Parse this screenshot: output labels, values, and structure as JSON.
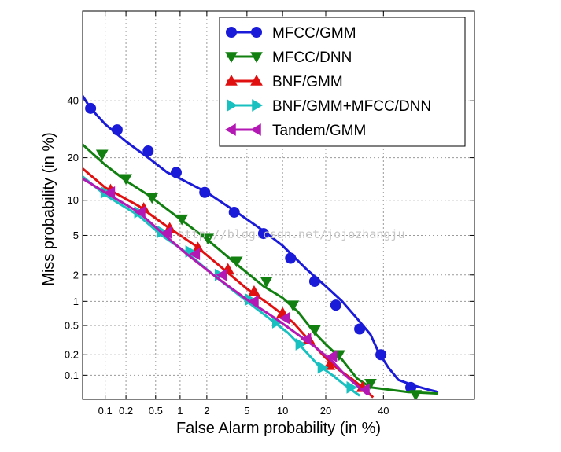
{
  "chart_data": {
    "type": "line",
    "title": "",
    "xlabel": "False Alarm probability (in %)",
    "ylabel": "Miss probability (in %)",
    "scale": "normal-deviate (DET)",
    "xlim_percent": [
      0.045,
      75
    ],
    "ylim_percent": [
      0.042,
      75
    ],
    "grid": true,
    "legend_position": "top-right",
    "x_ticks": [
      "0.1",
      "0.2",
      "0.5",
      "1",
      "2",
      "5",
      "10",
      "20",
      "40"
    ],
    "y_ticks": [
      "0.1",
      "0.2",
      "0.5",
      "1",
      "2",
      "5",
      "10",
      "20",
      "40"
    ],
    "watermark": "http://blog.csdn.net/jojozhangju",
    "series": [
      {
        "name": "MFCC/GMM",
        "color": "#1a1ad9",
        "marker": "circle",
        "points": [
          [
            0.045,
            42
          ],
          [
            0.06,
            37
          ],
          [
            0.1,
            31
          ],
          [
            0.2,
            25
          ],
          [
            0.4,
            20
          ],
          [
            0.7,
            16
          ],
          [
            1,
            14.5
          ],
          [
            2,
            11.5
          ],
          [
            4,
            8
          ],
          [
            7,
            5.5
          ],
          [
            10,
            4
          ],
          [
            15,
            2.3
          ],
          [
            20,
            1.5
          ],
          [
            25,
            1.0
          ],
          [
            30,
            0.62
          ],
          [
            35,
            0.38
          ],
          [
            38,
            0.22
          ],
          [
            42,
            0.13
          ],
          [
            46,
            0.085
          ],
          [
            52,
            0.07
          ],
          [
            58,
            0.06
          ],
          [
            62,
            0.055
          ]
        ],
        "marker_points": [
          [
            0.06,
            37
          ],
          [
            0.15,
            29
          ],
          [
            0.4,
            22
          ],
          [
            0.9,
            16
          ],
          [
            1.9,
            11.5
          ],
          [
            3.8,
            8
          ],
          [
            7,
            5.2
          ],
          [
            11.5,
            3.0
          ],
          [
            17,
            1.7
          ],
          [
            23,
            0.9
          ],
          [
            31,
            0.45
          ],
          [
            39,
            0.2
          ],
          [
            51,
            0.065
          ]
        ]
      },
      {
        "name": "MFCC/DNN",
        "color": "#118011",
        "marker": "triangle-down",
        "points": [
          [
            0.045,
            24
          ],
          [
            0.1,
            18
          ],
          [
            0.2,
            14
          ],
          [
            0.4,
            11
          ],
          [
            1,
            7
          ],
          [
            2,
            4.6
          ],
          [
            4,
            2.6
          ],
          [
            7,
            1.5
          ],
          [
            10,
            1.1
          ],
          [
            13,
            0.75
          ],
          [
            17,
            0.4
          ],
          [
            20,
            0.28
          ],
          [
            25,
            0.17
          ],
          [
            30,
            0.09
          ],
          [
            35,
            0.065
          ],
          [
            50,
            0.055
          ],
          [
            62,
            0.052
          ]
        ],
        "marker_points": [
          [
            0.09,
            21
          ],
          [
            0.2,
            14.5
          ],
          [
            0.45,
            10.5
          ],
          [
            1.05,
            7.0
          ],
          [
            2.05,
            4.7
          ],
          [
            4.0,
            2.8
          ],
          [
            7.4,
            1.7
          ],
          [
            12,
            0.9
          ],
          [
            17,
            0.44
          ],
          [
            24,
            0.2
          ],
          [
            35,
            0.075
          ],
          [
            53,
            0.05
          ]
        ]
      },
      {
        "name": "BNF/GMM",
        "color": "#e01010",
        "marker": "triangle-up",
        "points": [
          [
            0.045,
            17
          ],
          [
            0.1,
            12.5
          ],
          [
            0.3,
            9
          ],
          [
            0.7,
            6
          ],
          [
            1.5,
            4
          ],
          [
            3,
            2.3
          ],
          [
            5,
            1.4
          ],
          [
            8,
            0.9
          ],
          [
            12,
            0.55
          ],
          [
            16,
            0.3
          ],
          [
            20,
            0.18
          ],
          [
            24,
            0.12
          ],
          [
            28,
            0.09
          ],
          [
            33,
            0.06
          ],
          [
            36,
            0.045
          ]
        ],
        "marker_points": [
          [
            0.12,
            12
          ],
          [
            0.35,
            8.6
          ],
          [
            0.75,
            5.8
          ],
          [
            1.6,
            3.8
          ],
          [
            3.3,
            2.3
          ],
          [
            5.8,
            1.3
          ],
          [
            10,
            0.72
          ],
          [
            15.5,
            0.33
          ],
          [
            21,
            0.14
          ],
          [
            32,
            0.065
          ]
        ]
      },
      {
        "name": "BNF/GMM+MFCC/DNN",
        "color": "#18c0c0",
        "marker": "triangle-right",
        "points": [
          [
            0.045,
            15
          ],
          [
            0.1,
            11
          ],
          [
            0.3,
            7.5
          ],
          [
            0.6,
            5
          ],
          [
            1.2,
            3.4
          ],
          [
            2.5,
            1.9
          ],
          [
            5,
            1.0
          ],
          [
            8,
            0.6
          ],
          [
            11,
            0.4
          ],
          [
            14,
            0.25
          ],
          [
            18,
            0.14
          ],
          [
            22,
            0.1
          ],
          [
            26,
            0.07
          ],
          [
            31,
            0.048
          ]
        ],
        "marker_points": [
          [
            0.1,
            11.5
          ],
          [
            0.3,
            8.0
          ],
          [
            0.6,
            5.4
          ],
          [
            1.3,
            3.5
          ],
          [
            2.7,
            2.0
          ],
          [
            5.3,
            1.05
          ],
          [
            9,
            0.55
          ],
          [
            13.5,
            0.28
          ],
          [
            19,
            0.13
          ],
          [
            28,
            0.065
          ]
        ]
      },
      {
        "name": "Tandem/GMM",
        "color": "#b418b4",
        "marker": "triangle-left",
        "points": [
          [
            0.045,
            14.5
          ],
          [
            0.1,
            11.5
          ],
          [
            0.3,
            8.0
          ],
          [
            0.6,
            5.3
          ],
          [
            1.2,
            3.3
          ],
          [
            2.5,
            1.9
          ],
          [
            5,
            1.05
          ],
          [
            9,
            0.6
          ],
          [
            13,
            0.38
          ],
          [
            17,
            0.26
          ],
          [
            22,
            0.16
          ],
          [
            26,
            0.1
          ],
          [
            30,
            0.07
          ],
          [
            34,
            0.05
          ]
        ],
        "marker_points": [
          [
            0.12,
            11.5
          ],
          [
            0.32,
            8.0
          ],
          [
            0.7,
            5.3
          ],
          [
            1.5,
            3.3
          ],
          [
            2.9,
            2.0
          ],
          [
            5.8,
            1.0
          ],
          [
            10.5,
            0.62
          ],
          [
            15,
            0.33
          ],
          [
            22,
            0.19
          ],
          [
            33,
            0.06
          ]
        ]
      }
    ]
  }
}
